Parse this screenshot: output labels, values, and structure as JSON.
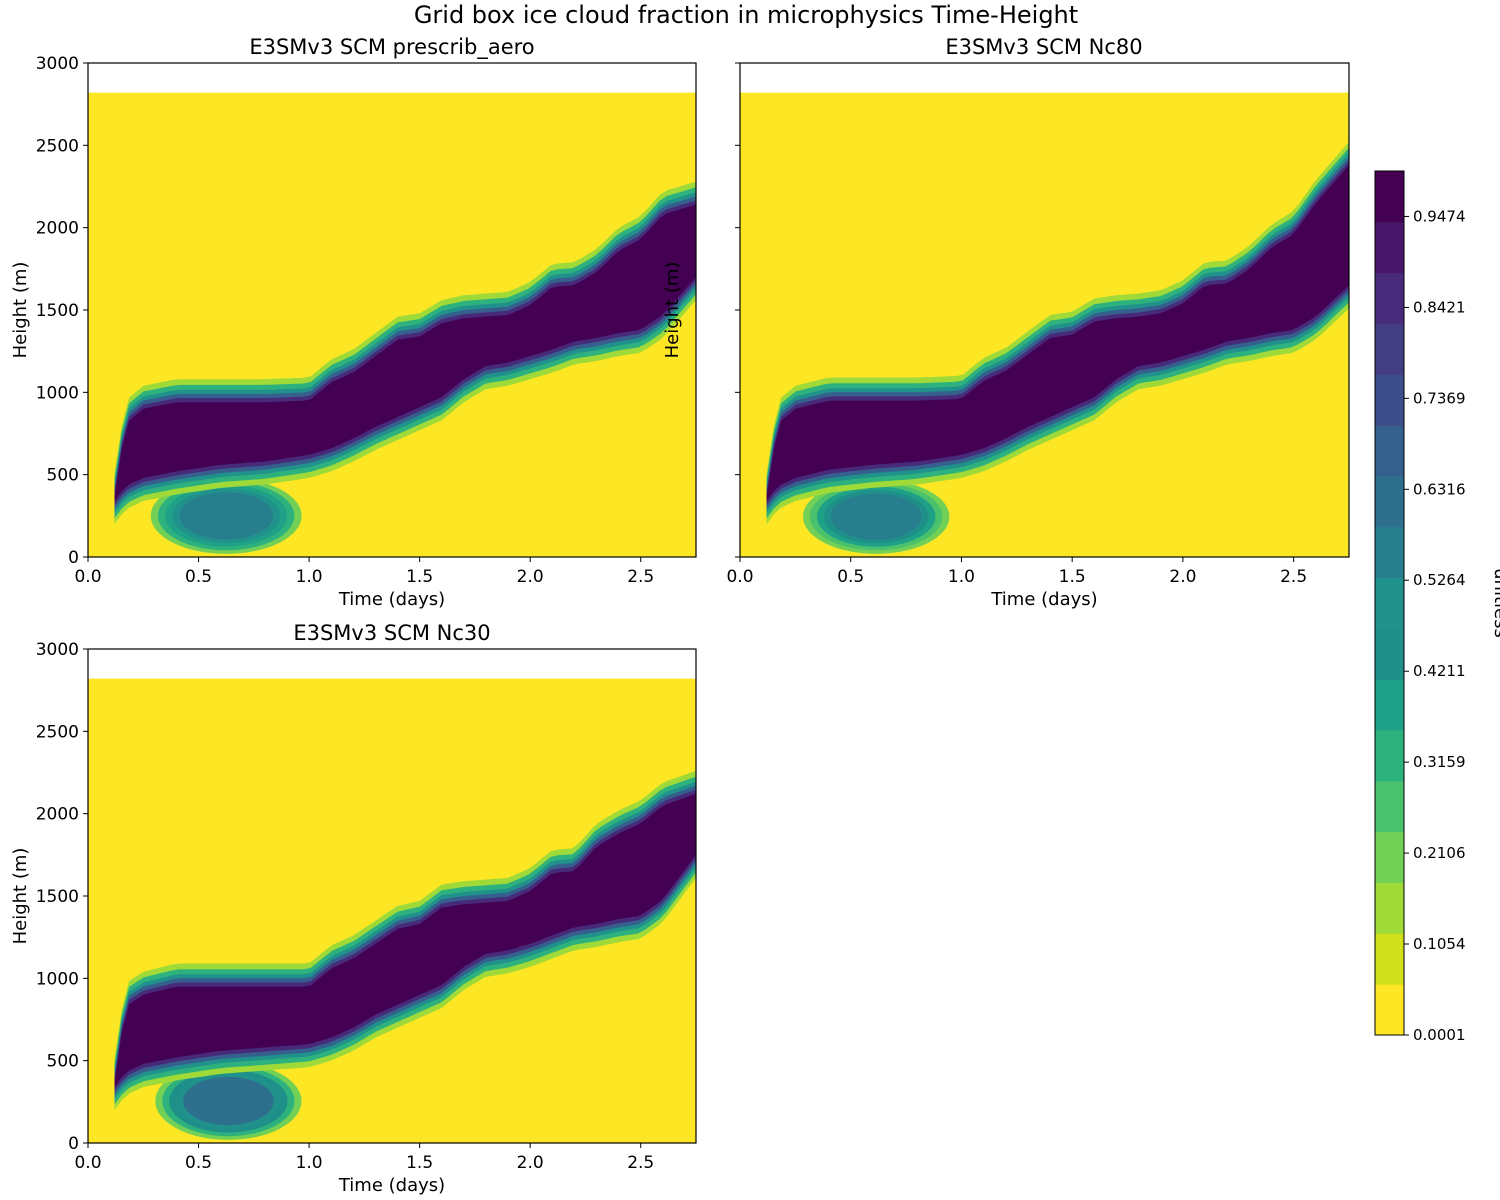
{
  "figure": {
    "title": "Grid box ice cloud fraction in microphysics Time-Height"
  },
  "colormap": [
    "#fde725",
    "#d0e11c",
    "#a0da39",
    "#73d056",
    "#4ac16d",
    "#2db27d",
    "#1fa187",
    "#1e9089",
    "#21918c",
    "#277f8e",
    "#2e6f8e",
    "#355f8d",
    "#3d4e8a",
    "#433d84",
    "#472a7a",
    "#48186a",
    "#440154"
  ],
  "chart_data": [
    {
      "type": "heatmap",
      "title": "E3SMv3 SCM prescrib_aero",
      "xlabel": "Time (days)",
      "ylabel": "Height (m)",
      "xlim": [
        0,
        2.75
      ],
      "ylim": [
        0,
        3000
      ],
      "xticks": [
        "0.0",
        "0.5",
        "1.0",
        "1.5",
        "2.0",
        "2.5"
      ],
      "yticks": [
        "0",
        "500",
        "1000",
        "1500",
        "2000",
        "2500",
        "3000"
      ],
      "data_top_m": 2820,
      "background_value": 0.0001,
      "cloud_band": {
        "time_days": [
          0.12,
          0.17,
          0.25,
          0.4,
          0.6,
          0.8,
          1.0,
          1.1,
          1.2,
          1.3,
          1.4,
          1.5,
          1.6,
          1.7,
          1.8,
          1.9,
          2.0,
          2.1,
          2.2,
          2.3,
          2.4,
          2.5,
          2.6,
          2.75
        ],
        "top_m": [
          370,
          810,
          900,
          940,
          940,
          940,
          950,
          1060,
          1120,
          1220,
          1320,
          1340,
          1420,
          1450,
          1460,
          1470,
          1530,
          1640,
          1650,
          1730,
          1860,
          1930,
          2080,
          2140
        ],
        "bottom_m": [
          340,
          430,
          480,
          520,
          560,
          580,
          620,
          660,
          720,
          790,
          850,
          910,
          970,
          1080,
          1160,
          1180,
          1220,
          1260,
          1310,
          1330,
          1360,
          1380,
          1470,
          1700
        ],
        "lower_blob": {
          "time_start": 0.3,
          "time_end": 0.95,
          "top_m": 470,
          "bottom_m": 30,
          "value": 0.6
        }
      }
    },
    {
      "type": "heatmap",
      "title": "E3SMv3 SCM Nc80",
      "xlabel": "Time (days)",
      "ylabel": "Height (m)",
      "xlim": [
        0,
        2.75
      ],
      "ylim": [
        0,
        3000
      ],
      "xticks": [
        "0.0",
        "0.5",
        "1.0",
        "1.5",
        "2.0",
        "2.5"
      ],
      "yticks": [],
      "data_top_m": 2820,
      "background_value": 0.0001,
      "cloud_band": {
        "time_days": [
          0.12,
          0.17,
          0.25,
          0.4,
          0.6,
          0.8,
          1.0,
          1.1,
          1.2,
          1.3,
          1.4,
          1.5,
          1.6,
          1.7,
          1.8,
          1.9,
          2.0,
          2.1,
          2.2,
          2.3,
          2.4,
          2.5,
          2.6,
          2.75
        ],
        "top_m": [
          370,
          810,
          900,
          950,
          950,
          950,
          960,
          1070,
          1130,
          1230,
          1330,
          1350,
          1430,
          1450,
          1460,
          1480,
          1540,
          1650,
          1660,
          1750,
          1880,
          1960,
          2150,
          2380
        ],
        "bottom_m": [
          340,
          430,
          480,
          530,
          560,
          580,
          620,
          660,
          720,
          790,
          850,
          910,
          970,
          1080,
          1160,
          1180,
          1220,
          1260,
          1310,
          1330,
          1360,
          1380,
          1460,
          1650
        ],
        "lower_blob": {
          "time_start": 0.3,
          "time_end": 0.93,
          "top_m": 460,
          "bottom_m": 30,
          "value": 0.55
        }
      }
    },
    {
      "type": "heatmap",
      "title": "E3SMv3 SCM Nc30",
      "xlabel": "Time (days)",
      "ylabel": "Height (m)",
      "xlim": [
        0,
        2.75
      ],
      "ylim": [
        0,
        3000
      ],
      "xticks": [
        "0.0",
        "0.5",
        "1.0",
        "1.5",
        "2.0",
        "2.5"
      ],
      "yticks": [
        "0",
        "500",
        "1000",
        "1500",
        "2000",
        "2500",
        "3000"
      ],
      "data_top_m": 2820,
      "background_value": 0.0001,
      "cloud_band": {
        "time_days": [
          0.12,
          0.17,
          0.25,
          0.4,
          0.6,
          0.8,
          1.0,
          1.1,
          1.2,
          1.3,
          1.4,
          1.5,
          1.6,
          1.7,
          1.8,
          1.9,
          2.0,
          2.1,
          2.2,
          2.3,
          2.4,
          2.5,
          2.6,
          2.75
        ],
        "top_m": [
          370,
          830,
          900,
          950,
          950,
          950,
          950,
          1060,
          1120,
          1210,
          1300,
          1330,
          1430,
          1450,
          1460,
          1470,
          1530,
          1640,
          1650,
          1800,
          1880,
          1940,
          2050,
          2120
        ],
        "bottom_m": [
          340,
          430,
          480,
          520,
          560,
          580,
          600,
          640,
          700,
          780,
          840,
          900,
          960,
          1070,
          1150,
          1170,
          1210,
          1260,
          1310,
          1330,
          1360,
          1380,
          1480,
          1750
        ],
        "lower_blob": {
          "time_start": 0.32,
          "time_end": 0.95,
          "top_m": 480,
          "bottom_m": 30,
          "value": 0.65
        }
      }
    }
  ],
  "colorbar": {
    "label": "unitless",
    "range": [
      0.0001,
      1.0
    ],
    "ticks": [
      "0.0001",
      "0.1054",
      "0.2106",
      "0.3159",
      "0.4211",
      "0.5264",
      "0.6316",
      "0.7369",
      "0.8421",
      "0.9474"
    ],
    "tick_values": [
      0.0001,
      0.1054,
      0.2106,
      0.3159,
      0.4211,
      0.5264,
      0.6316,
      0.7369,
      0.8421,
      0.9474
    ]
  }
}
